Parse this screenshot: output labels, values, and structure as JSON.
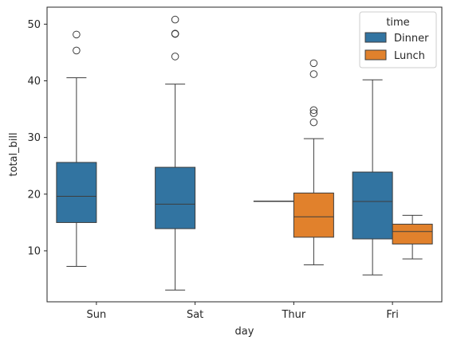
{
  "chart_data": {
    "type": "boxplot",
    "xlabel": "day",
    "ylabel": "total_bill",
    "categories": [
      "Sun",
      "Sat",
      "Thur",
      "Fri"
    ],
    "ylim": [
      1,
      53
    ],
    "yticks": [
      10,
      20,
      30,
      40,
      50
    ],
    "grid": false,
    "legend": {
      "title": "time",
      "position": "top-right",
      "entries": [
        {
          "name": "Dinner",
          "color": "#3274a1"
        },
        {
          "name": "Lunch",
          "color": "#e1812c"
        }
      ]
    },
    "series": [
      {
        "name": "Dinner",
        "color": "#3274a1",
        "boxes": [
          {
            "category": "Sun",
            "whisker_low": 7.25,
            "q1": 14.99,
            "median": 19.63,
            "q3": 25.6,
            "whisker_high": 40.55,
            "outliers": [
              48.17,
              45.35
            ]
          },
          {
            "category": "Sat",
            "whisker_low": 3.07,
            "q1": 13.91,
            "median": 18.24,
            "q3": 24.74,
            "whisker_high": 39.42,
            "outliers": [
              50.81,
              48.33,
              48.27,
              44.3
            ]
          },
          {
            "category": "Thur",
            "whisker_low": 18.78,
            "q1": 18.78,
            "median": 18.78,
            "q3": 18.78,
            "whisker_high": 18.78,
            "outliers": []
          },
          {
            "category": "Fri",
            "whisker_low": 5.75,
            "q1": 12.1,
            "median": 18.7,
            "q3": 23.9,
            "whisker_high": 40.17,
            "outliers": []
          }
        ]
      },
      {
        "name": "Lunch",
        "color": "#e1812c",
        "boxes": [
          {
            "category": "Thur",
            "whisker_low": 7.51,
            "q1": 12.4,
            "median": 16.0,
            "q3": 20.2,
            "whisker_high": 29.8,
            "outliers": [
              43.11,
              41.19,
              34.83,
              34.3,
              32.68
            ]
          },
          {
            "category": "Fri",
            "whisker_low": 8.58,
            "q1": 11.2,
            "median": 13.4,
            "q3": 14.7,
            "whisker_high": 16.27,
            "outliers": []
          }
        ]
      }
    ]
  }
}
